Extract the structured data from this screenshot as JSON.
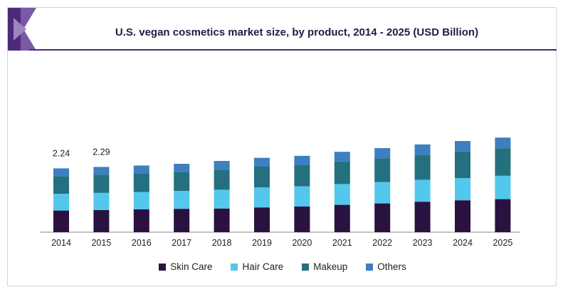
{
  "chart_data": {
    "type": "bar",
    "stacked": true,
    "title": "U.S. vegan cosmetics market size, by product, 2014 - 2025 (USD Billion)",
    "xlabel": "",
    "ylabel": "",
    "ylim": [
      0,
      3.5
    ],
    "categories": [
      "2014",
      "2015",
      "2016",
      "2017",
      "2018",
      "2019",
      "2020",
      "2021",
      "2022",
      "2023",
      "2024",
      "2025"
    ],
    "series": [
      {
        "name": "Skin Care",
        "color": "#2a1240",
        "values": [
          0.76,
          0.78,
          0.8,
          0.82,
          0.83,
          0.87,
          0.9,
          0.96,
          1.01,
          1.07,
          1.12,
          1.16
        ]
      },
      {
        "name": "Hair Care",
        "color": "#53c8ec",
        "values": [
          0.59,
          0.6,
          0.61,
          0.63,
          0.66,
          0.7,
          0.71,
          0.73,
          0.75,
          0.77,
          0.78,
          0.82
        ]
      },
      {
        "name": "Makeup",
        "color": "#24707e",
        "values": [
          0.62,
          0.64,
          0.65,
          0.66,
          0.7,
          0.73,
          0.74,
          0.79,
          0.83,
          0.87,
          0.93,
          0.96
        ]
      },
      {
        "name": "Others",
        "color": "#3d7fc0",
        "values": [
          0.27,
          0.27,
          0.28,
          0.29,
          0.31,
          0.31,
          0.33,
          0.34,
          0.36,
          0.37,
          0.37,
          0.38
        ]
      }
    ],
    "data_labels": [
      {
        "category": "2014",
        "text": "2.24"
      },
      {
        "category": "2015",
        "text": "2.29"
      }
    ],
    "legend_position": "bottom",
    "grid": false
  },
  "icons": {
    "logo": "brand-corner-logo"
  }
}
